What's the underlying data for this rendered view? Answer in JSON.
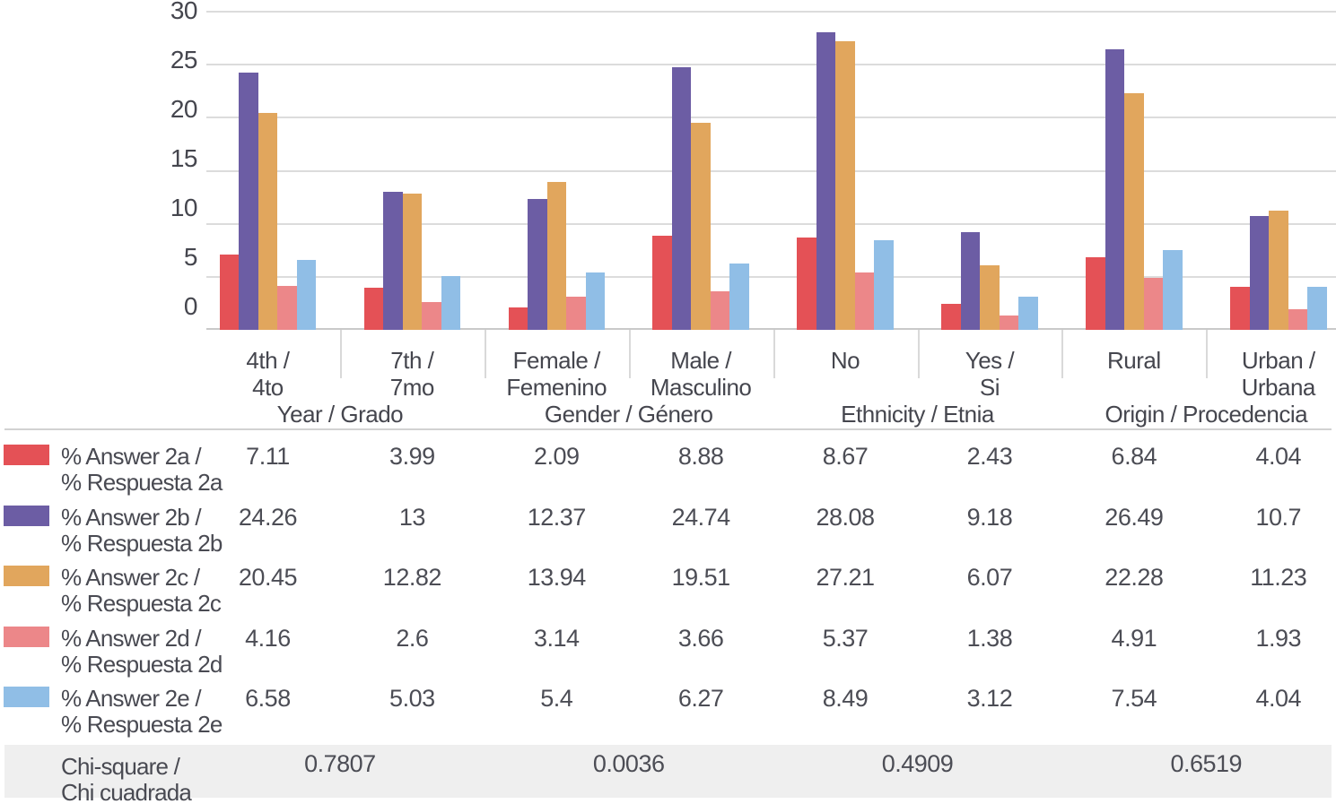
{
  "chart_data": {
    "type": "bar",
    "title": "",
    "grid": true,
    "legend_position": "table-left",
    "y_axis": {
      "min": 0,
      "max": 30,
      "tick_interval": 5,
      "ticks": [
        0,
        5,
        10,
        15,
        20,
        25,
        30
      ]
    },
    "categories": [
      {
        "line1": "4th /",
        "line2": "4to"
      },
      {
        "line1": "7th /",
        "line2": "7mo"
      },
      {
        "line1": "Female /",
        "line2": "Femenino"
      },
      {
        "line1": "Male /",
        "line2": "Masculino"
      },
      {
        "line1": "No",
        "line2": ""
      },
      {
        "line1": "Yes /",
        "line2": "Si"
      },
      {
        "line1": "Rural",
        "line2": ""
      },
      {
        "line1": "Urban /",
        "line2": "Urbana"
      }
    ],
    "groups": [
      {
        "label": "Year / Grado",
        "chi_square": "0.7807"
      },
      {
        "label": "Gender / Género",
        "chi_square": "0.0036"
      },
      {
        "label": "Ethnicity / Etnia",
        "chi_square": "0.4909"
      },
      {
        "label": "Origin / Procedencia",
        "chi_square": "0.6519"
      }
    ],
    "series": [
      {
        "name": "% Answer 2a / % Respuesta 2a",
        "line1": "% Answer 2a /",
        "line2": "% Respuesta 2a",
        "color": "#E45156",
        "values": [
          7.11,
          3.99,
          2.09,
          8.88,
          8.67,
          2.43,
          6.84,
          4.04
        ]
      },
      {
        "name": "% Answer 2b / % Respuesta 2b",
        "line1": "% Answer 2b /",
        "line2": "% Respuesta 2b",
        "color": "#6C5DA4",
        "values": [
          24.26,
          13,
          12.37,
          24.74,
          28.08,
          9.18,
          26.49,
          10.7
        ]
      },
      {
        "name": "% Answer 2c / % Respuesta 2c",
        "line1": "% Answer 2c /",
        "line2": "% Respuesta 2c",
        "color": "#E1A65D",
        "values": [
          20.45,
          12.82,
          13.94,
          19.51,
          27.21,
          6.07,
          22.28,
          11.23
        ]
      },
      {
        "name": "% Answer 2d / % Respuesta 2d",
        "line1": "% Answer 2d /",
        "line2": "% Respuesta 2d",
        "color": "#EC8789",
        "values": [
          4.16,
          2.6,
          3.14,
          3.66,
          5.37,
          1.38,
          4.91,
          1.93
        ]
      },
      {
        "name": "% Answer 2e / % Respuesta 2e",
        "line1": "% Answer 2e /",
        "line2": "% Respuesta 2e",
        "color": "#90BEE6",
        "values": [
          6.58,
          5.03,
          5.4,
          6.27,
          8.49,
          3.12,
          7.54,
          4.04
        ]
      }
    ],
    "chi_row": {
      "line1": "Chi-square /",
      "line2": "Chi cuadrada"
    }
  },
  "colors": {
    "background": "#FFFFFF",
    "text": "#494A52",
    "gridline": "#DCDCDC",
    "axis_line": "#C9C9C9",
    "category_divider": "#D9D9D9",
    "table_top_border": "#D2D2D2",
    "chi_band_background": "#EFEFEF"
  }
}
